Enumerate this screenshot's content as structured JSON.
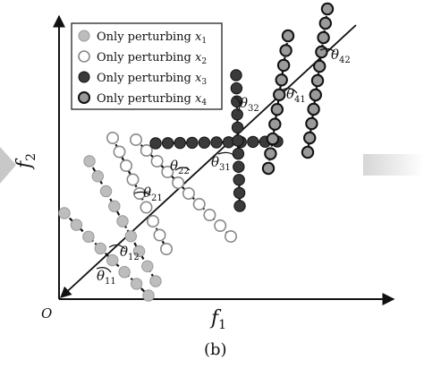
{
  "figure": {
    "caption": "(b)",
    "origin_label": "O",
    "x_axis_label": {
      "symbol": "f",
      "subscript": "1"
    },
    "y_axis_label": {
      "symbol": "f",
      "subscript": "2"
    }
  },
  "legend": {
    "entries": [
      {
        "text": "Only perturbing ",
        "var": "x",
        "sub": "1",
        "marker": "light-gray-filled"
      },
      {
        "text": "Only perturbing ",
        "var": "x",
        "sub": "2",
        "marker": "hollow"
      },
      {
        "text": "Only perturbing ",
        "var": "x",
        "sub": "3",
        "marker": "dark-filled"
      },
      {
        "text": "Only perturbing ",
        "var": "x",
        "sub": "4",
        "marker": "gray-ring"
      }
    ]
  },
  "angle_labels": [
    {
      "sym": "θ",
      "sub": "11"
    },
    {
      "sym": "θ",
      "sub": "12"
    },
    {
      "sym": "θ",
      "sub": "21"
    },
    {
      "sym": "θ",
      "sub": "22"
    },
    {
      "sym": "θ",
      "sub": "31"
    },
    {
      "sym": "θ",
      "sub": "32"
    },
    {
      "sym": "θ",
      "sub": "41"
    },
    {
      "sym": "θ",
      "sub": "42"
    }
  ],
  "colors": {
    "light_gray_marker": "#bdbdbd",
    "dark_marker": "#3a3a3a",
    "ring_marker_fill": "#9a9a9a",
    "side_arrow": "#c8c8c8"
  }
}
